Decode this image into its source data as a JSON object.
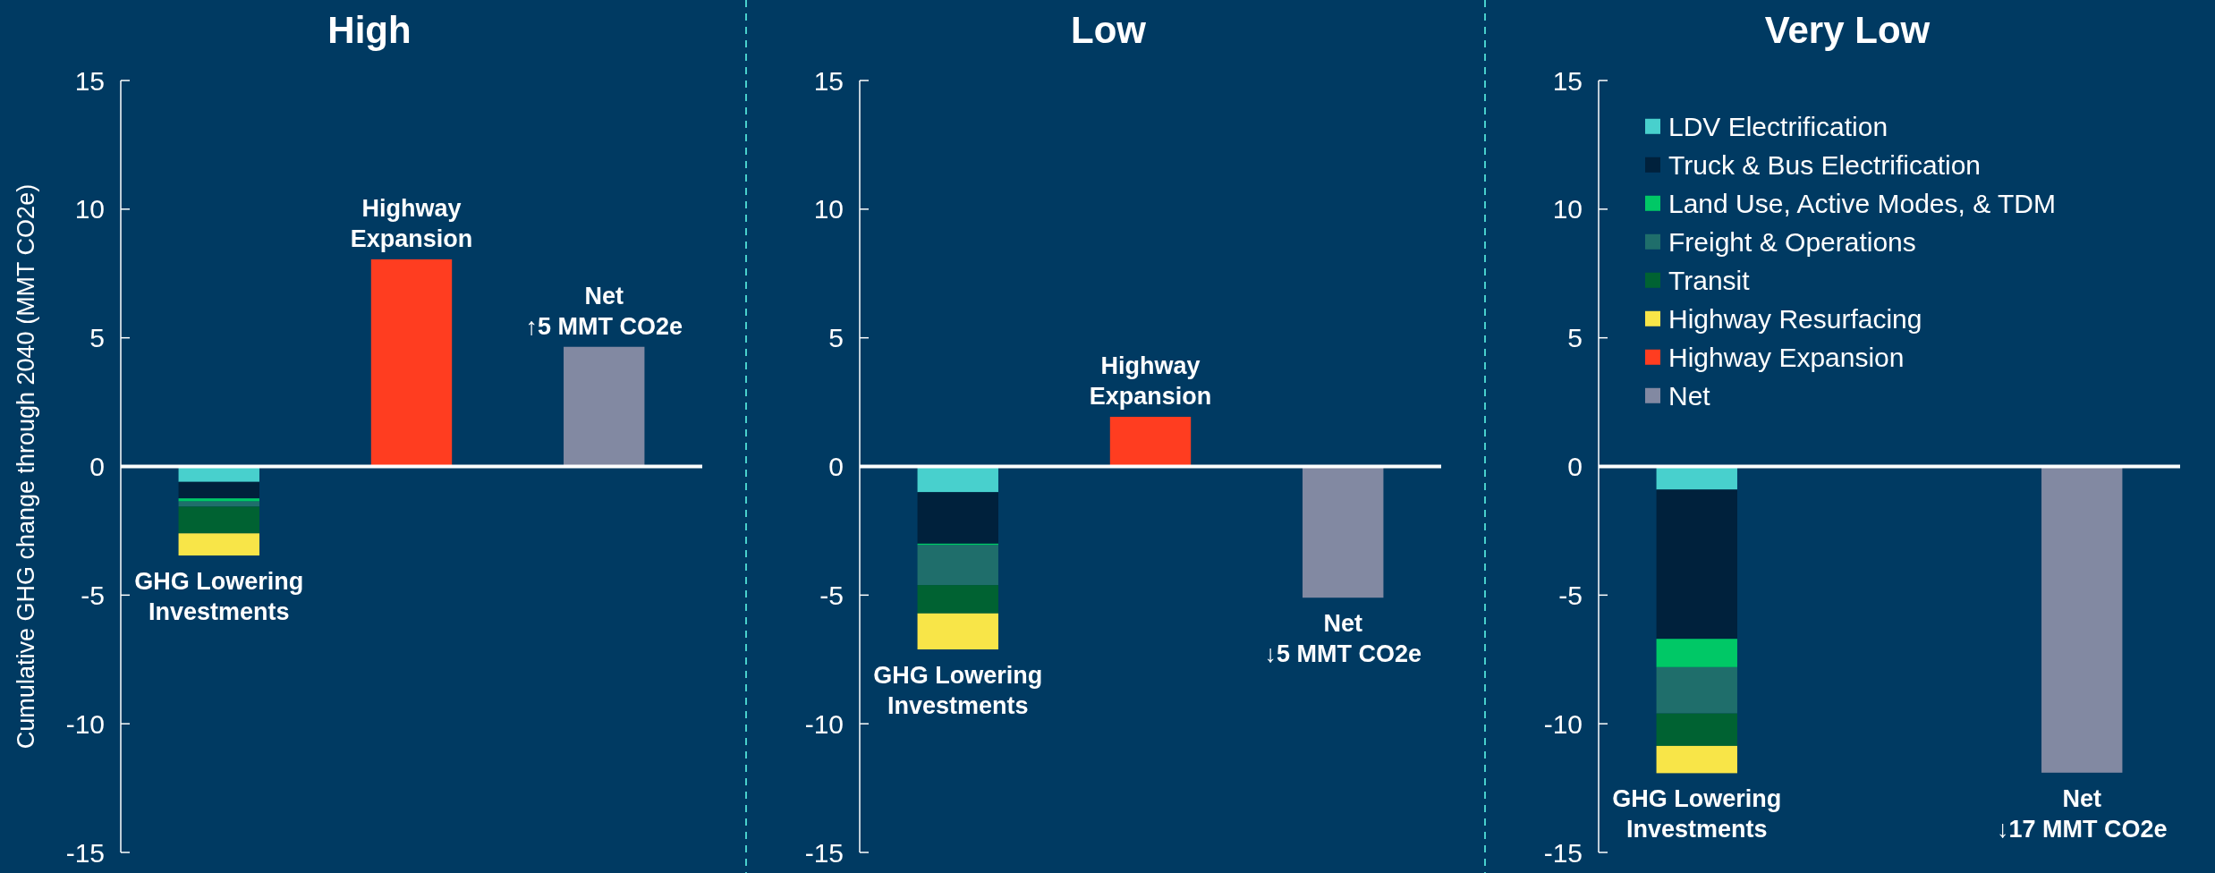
{
  "chart_data": [
    {
      "type": "bar",
      "title": "High",
      "ylabel": "Cumulative GHG change through 2040 (MMT CO2e)",
      "stacked": true,
      "legend": false,
      "categories": [
        "GHG Lowering Investments",
        "Highway Expansion",
        "Net"
      ],
      "ylim": [
        -15,
        15
      ],
      "yticks": [
        -15,
        -10,
        -5,
        0,
        5,
        10,
        15
      ],
      "annotations": [
        {
          "text": "↑5 MMT CO2e",
          "x": "Net",
          "y": 4.65
        }
      ],
      "series": [
        {
          "color": "#48d0cd",
          "values": [
            -0.6,
            null,
            null
          ]
        },
        {
          "color": "#00213c",
          "values": [
            -0.64,
            null,
            null
          ]
        },
        {
          "color": "#00c866",
          "values": [
            -0.12,
            null,
            null
          ]
        },
        {
          "color": "#1f6e6b",
          "values": [
            -0.2,
            null,
            null
          ]
        },
        {
          "color": "#006232",
          "values": [
            -1.04,
            null,
            null
          ]
        },
        {
          "color": "#f8e548",
          "values": [
            -0.86,
            null,
            null
          ]
        },
        {
          "color": "#ff3d20",
          "values": [
            null,
            8.05,
            null
          ]
        },
        {
          "color": "#8289a2",
          "values": [
            null,
            null,
            4.65
          ]
        }
      ]
    },
    {
      "type": "bar",
      "title": "Low",
      "stacked": true,
      "legend": false,
      "categories": [
        "GHG Lowering Investments",
        "Highway Expansion",
        "Net"
      ],
      "ylim": [
        -15,
        15
      ],
      "yticks": [
        -15,
        -10,
        -5,
        0,
        5,
        10,
        15
      ],
      "annotations": [
        {
          "text": "↓5 MMT CO2e",
          "x": "Net",
          "y": -5.1
        }
      ],
      "series": [
        {
          "color": "#48d0cd",
          "values": [
            -1.0,
            null,
            null
          ]
        },
        {
          "color": "#00213c",
          "values": [
            -2.0,
            null,
            null
          ]
        },
        {
          "color": "#00c866",
          "values": [
            -0.06,
            null,
            null
          ]
        },
        {
          "color": "#1f6e6b",
          "values": [
            -1.55,
            null,
            null
          ]
        },
        {
          "color": "#006232",
          "values": [
            -1.1,
            null,
            null
          ]
        },
        {
          "color": "#f8e548",
          "values": [
            -1.4,
            null,
            null
          ]
        },
        {
          "color": "#ff3d20",
          "values": [
            null,
            1.93,
            null
          ]
        },
        {
          "color": "#8289a2",
          "values": [
            null,
            null,
            -5.1
          ]
        }
      ]
    },
    {
      "type": "bar",
      "title": "Very Low",
      "stacked": true,
      "legend": "top left",
      "categories": [
        "GHG Lowering Investments",
        null,
        "Net"
      ],
      "ylim": [
        -15,
        15
      ],
      "yticks": [
        -15,
        -10,
        -5,
        0,
        5,
        10,
        15
      ],
      "annotations": [
        {
          "text": "↓17 MMT CO2e",
          "x": "Net",
          "y": -11.9
        }
      ],
      "series": [
        {
          "name": "LDV Electrification",
          "color": "#48d0cd",
          "values": [
            -0.9,
            null,
            null
          ]
        },
        {
          "name": "Truck & Bus Electrification",
          "color": "#00213c",
          "values": [
            -5.8,
            null,
            null
          ]
        },
        {
          "name": "Land Use, Active Modes, & TDM",
          "color": "#00c866",
          "values": [
            -1.1,
            null,
            null
          ]
        },
        {
          "name": "Freight & Operations",
          "color": "#1f6e6b",
          "values": [
            -1.8,
            null,
            null
          ]
        },
        {
          "name": "Transit",
          "color": "#006232",
          "values": [
            -1.26,
            null,
            null
          ]
        },
        {
          "name": "Highway Resurfacing",
          "color": "#f8e548",
          "values": [
            -1.06,
            null,
            null
          ]
        },
        {
          "name": "Highway Expansion",
          "color": "#ff3d20",
          "values": [
            null,
            null,
            null
          ]
        },
        {
          "name": "Net",
          "color": "#8289a2",
          "values": [
            null,
            null,
            -11.9
          ]
        }
      ]
    }
  ]
}
